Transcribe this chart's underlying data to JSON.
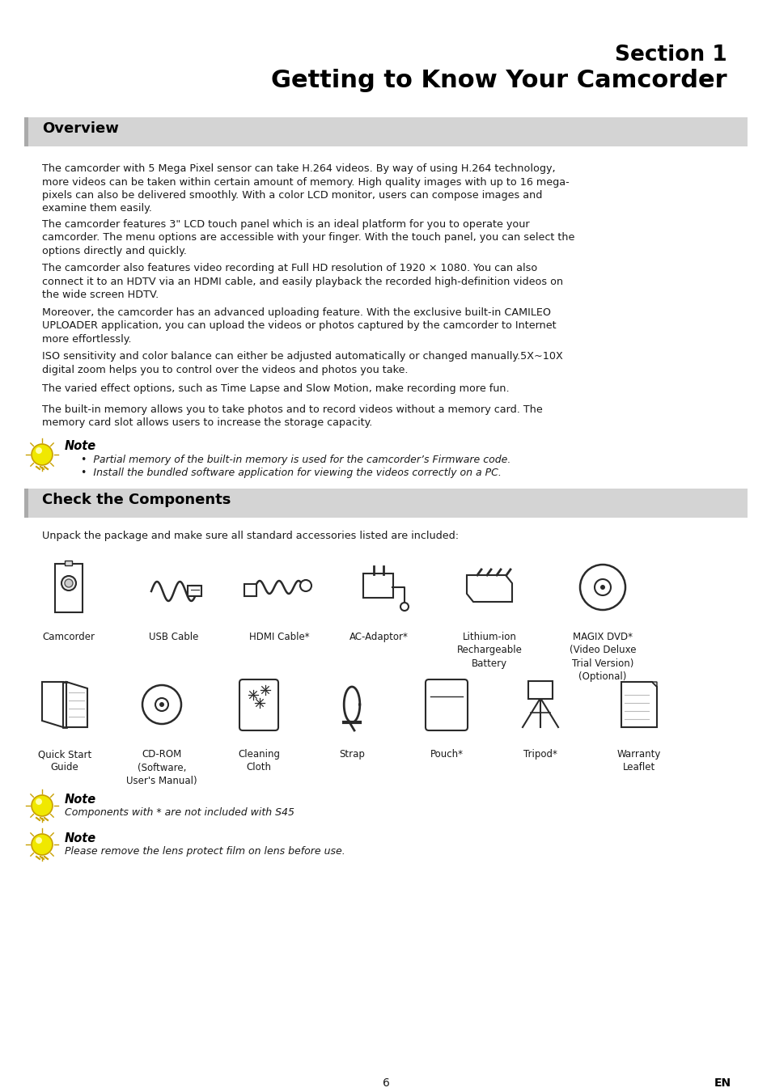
{
  "page_bg": "#ffffff",
  "section_bg": "#d4d4d4",
  "title_line1": "Section 1",
  "title_line2": "Getting to Know Your Camcorder",
  "section1_title": "Overview",
  "section2_title": "Check the Components",
  "para1": "The camcorder with 5 Mega Pixel sensor can take H.264 videos. By way of using H.264 technology,\nmore videos can be taken within certain amount of memory. High quality images with up to 16 mega-\npixels can also be delivered smoothly. With a color LCD monitor, users can compose images and\nexamine them easily.",
  "para2": "The camcorder features 3\" LCD touch panel which is an ideal platform for you to operate your\ncamcorder. The menu options are accessible with your finger. With the touch panel, you can select the\noptions directly and quickly.",
  "para3": "The camcorder also features video recording at Full HD resolution of 1920 × 1080. You can also\nconnect it to an HDTV via an HDMI cable, and easily playback the recorded high-definition videos on\nthe wide screen HDTV.",
  "para4": "Moreover, the camcorder has an advanced uploading feature. With the exclusive built-in CAMILEO\nUPLOADER application, you can upload the videos or photos captured by the camcorder to Internet\nmore effortlessly.",
  "para5": "ISO sensitivity and color balance can either be adjusted automatically or changed manually.5X~10X\ndigital zoom helps you to control over the videos and photos you take.",
  "para6": "The varied effect options, such as Time Lapse and Slow Motion, make recording more fun.",
  "para7": "The built-in memory allows you to take photos and to record videos without a memory card. The\nmemory card slot allows users to increase the storage capacity.",
  "note_title": "Note",
  "note1_b1": "Partial memory of the built-in memory is used for the camcorder’s Firmware code.",
  "note1_b2": "Install the bundled software application for viewing the videos correctly on a PC.",
  "components_intro": "Unpack the package and make sure all standard accessories listed are included:",
  "row1_labels": [
    "Camcorder",
    "USB Cable",
    "HDMI Cable*",
    "AC-Adaptor*",
    "Lithium-ion\nRechargeable\nBattery",
    "MAGIX DVD*\n(Video Deluxe\nTrial Version)\n(Optional)"
  ],
  "row2_labels": [
    "Quick Start\nGuide",
    "CD-ROM\n(Software,\nUser's Manual)",
    "Cleaning\nCloth",
    "Strap",
    "Pouch*",
    "Tripod*",
    "Warranty\nLeaflet"
  ],
  "note2_text": "Components with * are not included with S45",
  "note3_text": "Please remove the lens protect film on lens before use.",
  "footer_en": "EN",
  "page_num": "6",
  "text_color": "#1a1a1a",
  "title_color": "#000000"
}
